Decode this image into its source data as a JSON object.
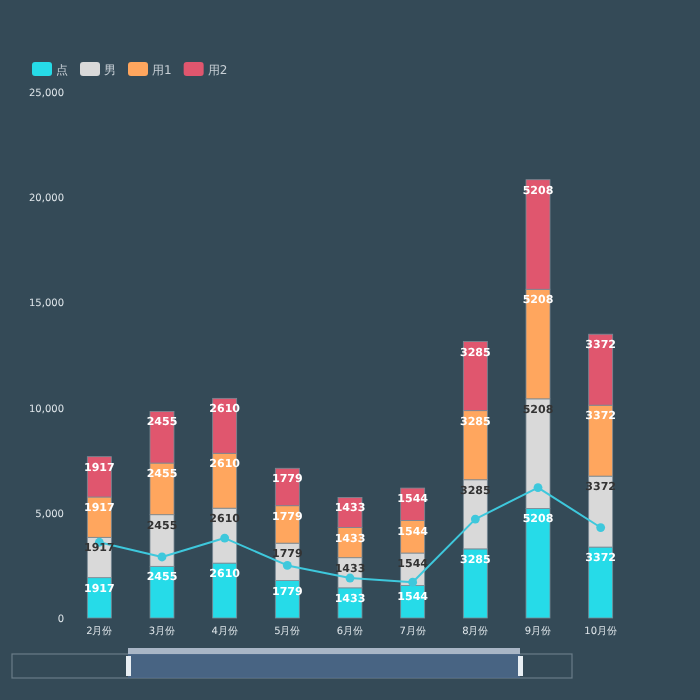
{
  "chart_data": {
    "type": "bar",
    "stacked": true,
    "categories": [
      "2月份",
      "3月份",
      "4月份",
      "5月份",
      "6月份",
      "7月份",
      "8月份",
      "9月份",
      "10月份"
    ],
    "ylim": [
      0,
      25000
    ],
    "yticks": [
      0,
      {
        "value": 5000,
        "label": "5,000"
      },
      {
        "value": 10000,
        "label": "10,000"
      },
      {
        "value": 15000,
        "label": "15,000"
      },
      {
        "value": 20000,
        "label": "20,000"
      },
      {
        "value": 25000,
        "label": "25,000"
      }
    ],
    "grid": false,
    "legend": "top left",
    "series": [
      {
        "name": "点",
        "color": "#26dbe8",
        "values": [
          1917,
          2455,
          2610,
          1779,
          1433,
          1544,
          3285,
          5208,
          3372
        ],
        "value_labels": [
          "1917",
          "2455",
          "2610",
          "1779",
          "1433",
          "1544",
          "3285",
          "5208",
          "3372"
        ]
      },
      {
        "name": "男",
        "color": "#d9d9d9",
        "values": [
          1917,
          2455,
          2610,
          1779,
          1433,
          1544,
          3285,
          5208,
          3372
        ],
        "value_labels": [
          "1917",
          "2455",
          "2610",
          "1779",
          "1433",
          "1544",
          "3285",
          "5208",
          "3372"
        ]
      },
      {
        "name": "用1",
        "color": "#ffa65e",
        "values": [
          1917,
          2455,
          2610,
          1779,
          1433,
          1544,
          3285,
          5208,
          3372
        ],
        "value_labels": [
          "1917",
          "2455",
          "2610",
          "1779",
          "1433",
          "1544",
          "3285",
          "5208",
          "3372"
        ]
      },
      {
        "name": "用2",
        "color": "#e0566e",
        "values": [
          1917,
          2455,
          2610,
          1779,
          1433,
          1544,
          3285,
          5208,
          3372
        ],
        "value_labels": [
          "1917",
          "2455",
          "2610",
          "1779",
          "1433",
          "1544",
          "3285",
          "5208",
          "3372"
        ]
      },
      {
        "type": "line",
        "color": "#3ec8dc",
        "marker": "circle",
        "values": [
          3600,
          2900,
          3800,
          2500,
          1900,
          1700,
          4700,
          6200,
          4300
        ]
      }
    ]
  }
}
